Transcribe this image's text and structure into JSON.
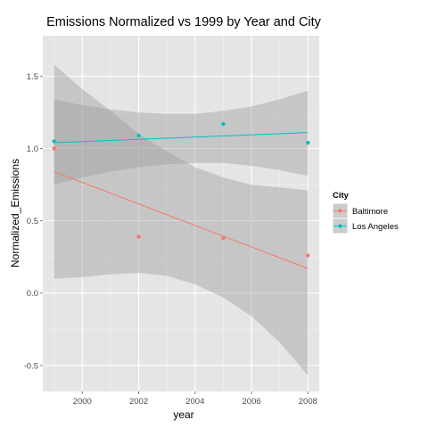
{
  "chart_data": {
    "type": "scatter",
    "title": "Emissions Normalized vs 1999 by Year and City",
    "xlabel": "year",
    "ylabel": "Normalized_Emissions",
    "xlim": [
      1998.6,
      2008.4
    ],
    "ylim": [
      -0.68,
      1.78
    ],
    "x_ticks": [
      2000,
      2002,
      2004,
      2006,
      2008
    ],
    "y_ticks": [
      -0.5,
      0.0,
      0.5,
      1.0,
      1.5
    ],
    "x_tick_labels": [
      "2000",
      "2002",
      "2004",
      "2006",
      "2008"
    ],
    "y_tick_labels": [
      "-0.5",
      "0.0",
      "0.5",
      "1.0",
      "1.5"
    ],
    "grid": true,
    "panel_background": "#e5e5e5",
    "grid_color": "#ffffff",
    "ribbon_color": "#999999",
    "legend": {
      "title": "City",
      "placement": "right",
      "entries": [
        "Baltimore",
        "Los Angeles"
      ]
    },
    "series": [
      {
        "name": "Baltimore",
        "color": "#f8766d",
        "points": [
          {
            "x": 1999,
            "y": 1.0
          },
          {
            "x": 2002,
            "y": 0.39
          },
          {
            "x": 2005,
            "y": 0.38
          },
          {
            "x": 2008,
            "y": 0.26
          }
        ],
        "fit": {
          "x": [
            1999,
            2008
          ],
          "y": [
            0.84,
            0.17
          ]
        },
        "band": {
          "x": [
            1999,
            2000,
            2001,
            2002,
            2003,
            2004,
            2005,
            2006,
            2007,
            2008
          ],
          "lower": [
            0.1,
            0.11,
            0.13,
            0.14,
            0.12,
            0.06,
            -0.03,
            -0.16,
            -0.34,
            -0.57
          ],
          "upper": [
            1.58,
            1.41,
            1.26,
            1.1,
            0.98,
            0.87,
            0.8,
            0.75,
            0.73,
            0.71
          ]
        }
      },
      {
        "name": "Los Angeles",
        "color": "#00bfc4",
        "points": [
          {
            "x": 1999,
            "y": 1.05
          },
          {
            "x": 2002,
            "y": 1.09
          },
          {
            "x": 2005,
            "y": 1.17
          },
          {
            "x": 2008,
            "y": 1.04
          }
        ],
        "fit": {
          "x": [
            1999,
            2008
          ],
          "y": [
            1.04,
            1.11
          ]
        },
        "band": {
          "x": [
            1999,
            2000,
            2001,
            2002,
            2003,
            2004,
            2005,
            2006,
            2007,
            2008
          ],
          "lower": [
            0.75,
            0.8,
            0.84,
            0.87,
            0.89,
            0.9,
            0.9,
            0.88,
            0.85,
            0.81
          ],
          "upper": [
            1.34,
            1.3,
            1.27,
            1.25,
            1.24,
            1.24,
            1.26,
            1.29,
            1.34,
            1.4
          ]
        }
      }
    ]
  }
}
